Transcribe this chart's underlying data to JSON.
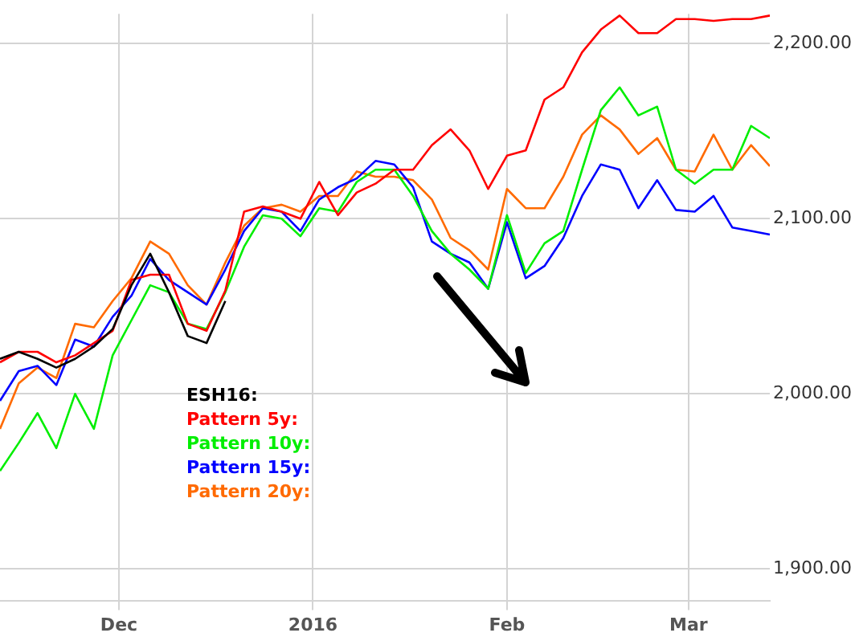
{
  "chart_data": {
    "type": "line",
    "x": [
      "2015-11-12",
      "2015-11-15",
      "2015-11-18",
      "2015-11-21",
      "2015-11-24",
      "2015-11-27",
      "2015-11-30",
      "2015-12-03",
      "2015-12-06",
      "2015-12-09",
      "2015-12-12",
      "2015-12-15",
      "2015-12-18",
      "2015-12-21",
      "2015-12-24",
      "2015-12-27",
      "2015-12-30",
      "2016-01-02",
      "2016-01-05",
      "2016-01-08",
      "2016-01-11",
      "2016-01-14",
      "2016-01-17",
      "2016-01-20",
      "2016-01-23",
      "2016-01-26",
      "2016-01-29",
      "2016-02-01",
      "2016-02-04",
      "2016-02-07",
      "2016-02-10",
      "2016-02-13",
      "2016-02-16",
      "2016-02-19",
      "2016-02-22",
      "2016-02-25",
      "2016-02-28",
      "2016-03-02",
      "2016-03-05",
      "2016-03-08",
      "2016-03-11",
      "2016-03-14"
    ],
    "series": [
      {
        "name": "ESH16:",
        "color": "#000000",
        "values": [
          2020,
          2024,
          2020,
          2015,
          2020,
          2027,
          2037,
          2062,
          2080,
          2058,
          2033,
          2029,
          2053,
          null,
          null,
          null,
          null,
          null,
          null,
          null,
          null,
          null,
          null,
          null,
          null,
          null,
          null,
          null,
          null,
          null,
          null,
          null,
          null,
          null,
          null,
          null,
          null,
          null,
          null,
          null,
          null,
          null
        ]
      },
      {
        "name": "Pattern 5y:",
        "color": "#ff0000",
        "values": [
          2018,
          2024,
          2024,
          2018,
          2022,
          2029,
          2036,
          2065,
          2068,
          2068,
          2040,
          2036,
          2059,
          2104,
          2107,
          2104,
          2100,
          2121,
          2102,
          2115,
          2120,
          2128,
          2128,
          2142,
          2151,
          2139,
          2117,
          2136,
          2139,
          2168,
          2175,
          2195,
          2208,
          2216,
          2206,
          2206,
          2214,
          2214,
          2213,
          2214,
          2214,
          2216
        ]
      },
      {
        "name": "Pattern 10y:",
        "color": "#00ee00",
        "values": [
          1956,
          1972,
          1989,
          1969,
          2000,
          1980,
          2022,
          2042,
          2062,
          2058,
          2040,
          2037,
          2058,
          2084,
          2102,
          2100,
          2090,
          2106,
          2104,
          2121,
          2128,
          2128,
          2113,
          2093,
          2080,
          2071,
          2060,
          2102,
          2069,
          2086,
          2093,
          2128,
          2162,
          2175,
          2159,
          2164,
          2128,
          2120,
          2128,
          2128,
          2153,
          2146
        ]
      },
      {
        "name": "Pattern 15y:",
        "color": "#0000ff",
        "values": [
          1996,
          2013,
          2016,
          2005,
          2031,
          2027,
          2044,
          2056,
          2077,
          2065,
          2058,
          2051,
          2071,
          2093,
          2106,
          2104,
          2093,
          2111,
          2118,
          2123,
          2133,
          2131,
          2118,
          2087,
          2080,
          2075,
          2060,
          2098,
          2066,
          2073,
          2089,
          2113,
          2131,
          2128,
          2106,
          2122,
          2105,
          2104,
          2113,
          2095,
          2093,
          2091
        ]
      },
      {
        "name": "Pattern 20y:",
        "color": "#ff6a00",
        "values": [
          1980,
          2006,
          2015,
          2009,
          2040,
          2038,
          2053,
          2066,
          2087,
          2080,
          2062,
          2051,
          2075,
          2096,
          2106,
          2108,
          2104,
          2113,
          2113,
          2127,
          2124,
          2124,
          2122,
          2111,
          2089,
          2082,
          2071,
          2117,
          2106,
          2106,
          2124,
          2148,
          2159,
          2151,
          2137,
          2146,
          2128,
          2127,
          2148,
          2128,
          2142,
          2130
        ]
      }
    ],
    "xlim": [
      "2015-11-12",
      "2016-03-14"
    ],
    "xticks": [
      {
        "value": "2015-12-01",
        "label": "Dec"
      },
      {
        "value": "2016-01-01",
        "label": "2016"
      },
      {
        "value": "2016-02-01",
        "label": "Feb"
      },
      {
        "value": "2016-03-01",
        "label": "Mar"
      }
    ],
    "ylim": [
      1882,
      2217
    ],
    "yticks": [
      {
        "value": 1900,
        "label": "1,900.00"
      },
      {
        "value": 2000,
        "label": "2,000.00"
      },
      {
        "value": 2100,
        "label": "2,100.00"
      },
      {
        "value": 2200,
        "label": "2,200.00"
      }
    ],
    "grid": true,
    "legend": "bottom left",
    "marker": "none",
    "line_style": "solid"
  }
}
